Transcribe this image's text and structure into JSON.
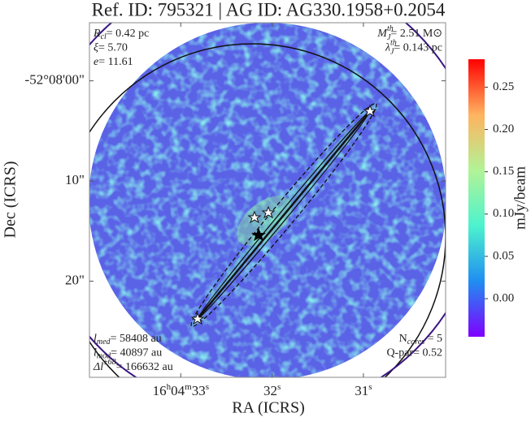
{
  "chart_data": {
    "type": "image",
    "title": "Ref. ID: 795321 | AG ID: AG330.1958+0.2054",
    "x_label": "RA (ICRS)",
    "y_label": "Dec (ICRS)",
    "xlim": [
      34.0,
      30.1
    ],
    "xticks": [
      {
        "value": 33,
        "label": "16h04m33s"
      },
      {
        "value": 32,
        "label": "32s"
      },
      {
        "value": 31,
        "label": "31s"
      }
    ],
    "ylim": [
      -5.8,
      29.6
    ],
    "yticks": [
      {
        "value": 0,
        "label": "-52°08'00\""
      },
      {
        "value": 10,
        "label": "10\""
      },
      {
        "value": 20,
        "label": "20\""
      }
    ],
    "colorbar": {
      "label": "mJy/beam",
      "lim": [
        -0.045,
        0.283
      ],
      "ticks": [
        {
          "value": 0,
          "label": "0.00"
        },
        0.05,
        {
          "value": 0.1,
          "label": "0.10"
        },
        0.15,
        {
          "value": 0.2,
          "label": "0.20"
        },
        0.25
      ],
      "colors": [
        "#7f00ff",
        "#1f8ef1",
        "#4df3ce",
        "#b2f396",
        "#ffb360",
        "#ff0000"
      ]
    },
    "annotations": {
      "top_left": [
        {
          "symbol": "R",
          "sub": "cl",
          "rest": "= 0.42 pc",
          "italic": true
        },
        {
          "symbol": "ξ",
          "rest": "= 5.70",
          "italic": true
        },
        {
          "symbol": "e",
          "rest": "= 11.61",
          "italic": true
        }
      ],
      "top_right": [
        {
          "symbol": "M",
          "sup": "th",
          "sub": "J",
          "rest": "= 2.51 M⊙",
          "italic": true
        },
        {
          "symbol": "λ",
          "sup": "th",
          "sub": "J",
          "rest": "= 0.143 pc",
          "italic": true
        }
      ],
      "bottom_left": [
        {
          "symbol": "l",
          "sub": "med",
          "rest": "= 58408 au",
          "italic": true
        },
        {
          "symbol": "l",
          "sub": "mod",
          "rest": "= 40897 au",
          "italic": true
        },
        {
          "symbol": "Δl",
          "sup": "±68",
          "rest": "= 166632 au",
          "italic": true
        }
      ],
      "bottom_right": [
        {
          "symbol": "N",
          "sub": "cores",
          "rest": " = 5",
          "italic": false
        },
        {
          "symbol": "Q-par",
          "rest": "= 0.52",
          "italic": false
        }
      ]
    }
  }
}
